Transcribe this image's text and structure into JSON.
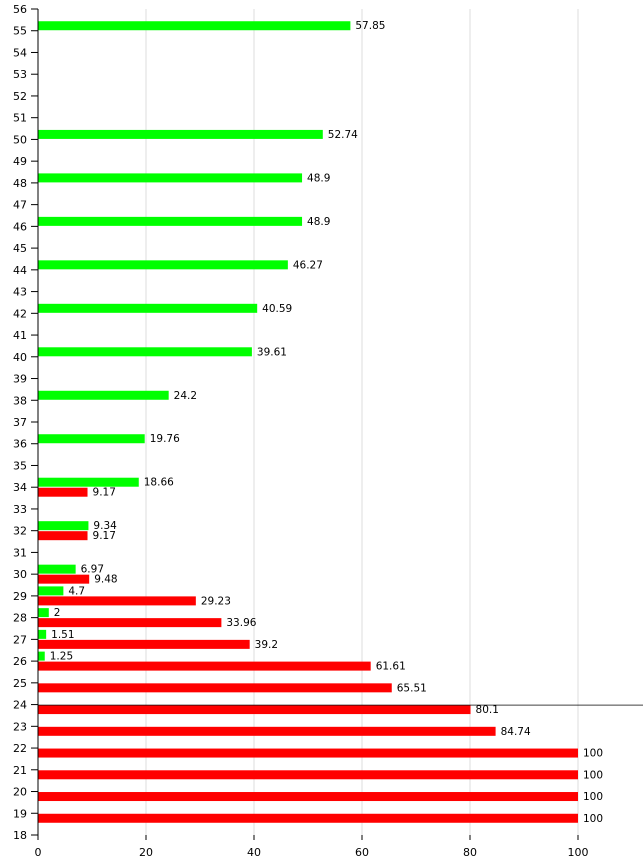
{
  "chart_data": {
    "type": "bar",
    "orientation": "horizontal",
    "title": "",
    "xlabel": "",
    "ylabel": "",
    "xlim": [
      0,
      100
    ],
    "x_ticks": [
      "0",
      "20",
      "40",
      "60",
      "80",
      "100"
    ],
    "grid": true,
    "categories": [
      "18",
      "19",
      "20",
      "21",
      "22",
      "23",
      "24",
      "25",
      "26",
      "27",
      "28",
      "29",
      "30",
      "31",
      "32",
      "33",
      "34",
      "35",
      "36",
      "37",
      "38",
      "39",
      "40",
      "41",
      "42",
      "43",
      "44",
      "45",
      "46",
      "47",
      "48",
      "49",
      "50",
      "51",
      "52",
      "53",
      "54",
      "55",
      "56"
    ],
    "series": [
      {
        "color": "#00ff00",
        "values": {
          "26": 1.25,
          "27": 1.51,
          "28": 2,
          "29": 4.7,
          "30": 6.97,
          "32": 9.34,
          "34": 18.66,
          "36": 19.76,
          "38": 24.2,
          "40": 39.61,
          "42": 40.59,
          "44": 46.27,
          "46": 48.9,
          "48": 48.9,
          "50": 52.74,
          "55": 57.85
        },
        "labels": {
          "26": "1.25",
          "27": "1.51",
          "28": "2",
          "29": "4.7",
          "30": "6.97",
          "32": "9.34",
          "34": "18.66",
          "36": "19.76",
          "38": "24.2",
          "40": "39.61",
          "42": "40.59",
          "44": "46.27",
          "46": "48.9",
          "48": "48.9",
          "50": "52.74",
          "55": "57.85"
        }
      },
      {
        "color": "#ff0000",
        "values": {
          "19": 100,
          "20": 100,
          "21": 100,
          "22": 100,
          "23": 84.74,
          "24": 80.1,
          "25": 65.51,
          "26": 61.61,
          "27": 39.2,
          "28": 33.96,
          "29": 29.23,
          "30": 9.48,
          "32": 9.17,
          "34": 9.17
        },
        "labels": {
          "19": "100",
          "20": "100",
          "21": "100",
          "22": "100",
          "23": "84.74",
          "24": "80.1",
          "25": "65.51",
          "26": "61.61",
          "27": "39.2",
          "28": "33.96",
          "29": "29.23",
          "30": "9.48",
          "32": "9.17",
          "34": "9.17"
        }
      }
    ],
    "highlight_category": "24",
    "highlight_line_color": "#000000"
  }
}
